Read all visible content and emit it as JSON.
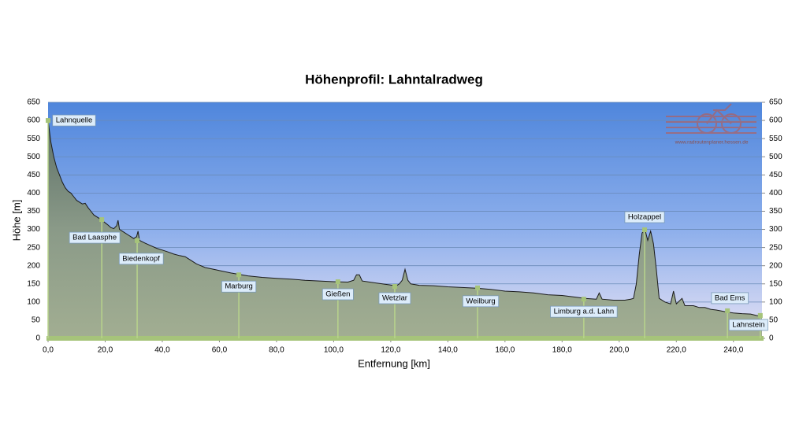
{
  "chart_data": {
    "type": "area",
    "title": "Höhenprofil: Lahntalradweg",
    "xlabel": "Entfernung  [km]",
    "ylabel": "Höhe [m]",
    "watermark": "www.radroutenplaner.hessen.de",
    "xlim": [
      0,
      250
    ],
    "ylim": [
      0,
      650
    ],
    "y2lim": [
      0,
      650
    ],
    "xticks": [
      {
        "value": 0,
        "label": "0,0"
      },
      {
        "value": 20,
        "label": "20,0"
      },
      {
        "value": 40,
        "label": "40,0"
      },
      {
        "value": 60,
        "label": "60,0"
      },
      {
        "value": 80,
        "label": "80,0"
      },
      {
        "value": 100,
        "label": "100,0"
      },
      {
        "value": 120,
        "label": "120,0"
      },
      {
        "value": 140,
        "label": "140,0"
      },
      {
        "value": 160,
        "label": "160,0"
      },
      {
        "value": 180,
        "label": "180,0"
      },
      {
        "value": 200,
        "label": "200,0"
      },
      {
        "value": 220,
        "label": "220,0"
      },
      {
        "value": 240,
        "label": "240,0"
      }
    ],
    "yticks": [
      0,
      50,
      100,
      150,
      200,
      250,
      300,
      350,
      400,
      450,
      500,
      550,
      600,
      650
    ],
    "y2ticks": [
      0,
      50,
      100,
      150,
      200,
      250,
      300,
      350,
      400,
      450,
      500,
      550,
      600,
      650
    ],
    "grid": true,
    "x": [
      0,
      1,
      2,
      3,
      4,
      5,
      6,
      7,
      8,
      9,
      10,
      11,
      12,
      13,
      14,
      15,
      16,
      17,
      18,
      19,
      20,
      21,
      22,
      23,
      24,
      24.5,
      25,
      26,
      28,
      30,
      31,
      31.5,
      32,
      34,
      36,
      38,
      40,
      42,
      44,
      46,
      48,
      50,
      52,
      55,
      58,
      61,
      64,
      67,
      70,
      75,
      80,
      85,
      90,
      95,
      100,
      105,
      107,
      108,
      109,
      110,
      115,
      120,
      122,
      123,
      124,
      125,
      126,
      127,
      130,
      135,
      140,
      145,
      150,
      155,
      160,
      165,
      170,
      175,
      180,
      185,
      188,
      192,
      193,
      194,
      198,
      202,
      204,
      205,
      206,
      207,
      208,
      209,
      210,
      211,
      212,
      213,
      214,
      216,
      218,
      219,
      220,
      222,
      223,
      226,
      228,
      230,
      232,
      234,
      236,
      238,
      240,
      243,
      246,
      248,
      250
    ],
    "series": [
      {
        "name": "Höhe",
        "color": "#8c9a86",
        "values": [
          600,
          540,
          500,
          470,
          450,
          430,
          415,
          405,
          400,
          390,
          380,
          375,
          370,
          372,
          360,
          350,
          340,
          335,
          330,
          325,
          318,
          312,
          305,
          302,
          310,
          325,
          300,
          295,
          285,
          275,
          280,
          295,
          270,
          262,
          255,
          248,
          243,
          238,
          232,
          228,
          225,
          215,
          205,
          195,
          190,
          185,
          180,
          176,
          172,
          168,
          165,
          163,
          160,
          158,
          156,
          155,
          160,
          175,
          175,
          158,
          152,
          147,
          145,
          150,
          160,
          190,
          160,
          150,
          146,
          145,
          142,
          140,
          138,
          135,
          130,
          128,
          125,
          120,
          118,
          113,
          110,
          108,
          125,
          108,
          105,
          105,
          108,
          110,
          150,
          230,
          290,
          300,
          270,
          295,
          260,
          190,
          110,
          100,
          95,
          130,
          95,
          110,
          90,
          90,
          85,
          85,
          80,
          78,
          75,
          72,
          70,
          68,
          67,
          63,
          60
        ]
      }
    ],
    "annotations": [
      {
        "label": "Lahnquelle",
        "x": 0,
        "y": 600
      },
      {
        "label": "Bad Laasphe",
        "x": 18.8,
        "y": 327
      },
      {
        "label": "Biedenkopf",
        "x": 31.2,
        "y": 269
      },
      {
        "label": "Marburg",
        "x": 66.8,
        "y": 175
      },
      {
        "label": "Gießen",
        "x": 101.5,
        "y": 156
      },
      {
        "label": "Wetzlar",
        "x": 121.4,
        "y": 143
      },
      {
        "label": "Weilburg",
        "x": 150.4,
        "y": 139
      },
      {
        "label": "Limburg a.d. Lahn",
        "x": 187.6,
        "y": 108
      },
      {
        "label": "Holzappel",
        "x": 208.9,
        "y": 299
      },
      {
        "label": "Bad Ems",
        "x": 237.9,
        "y": 76
      },
      {
        "label": "Lahnstein",
        "x": 249.4,
        "y": 63
      }
    ]
  }
}
